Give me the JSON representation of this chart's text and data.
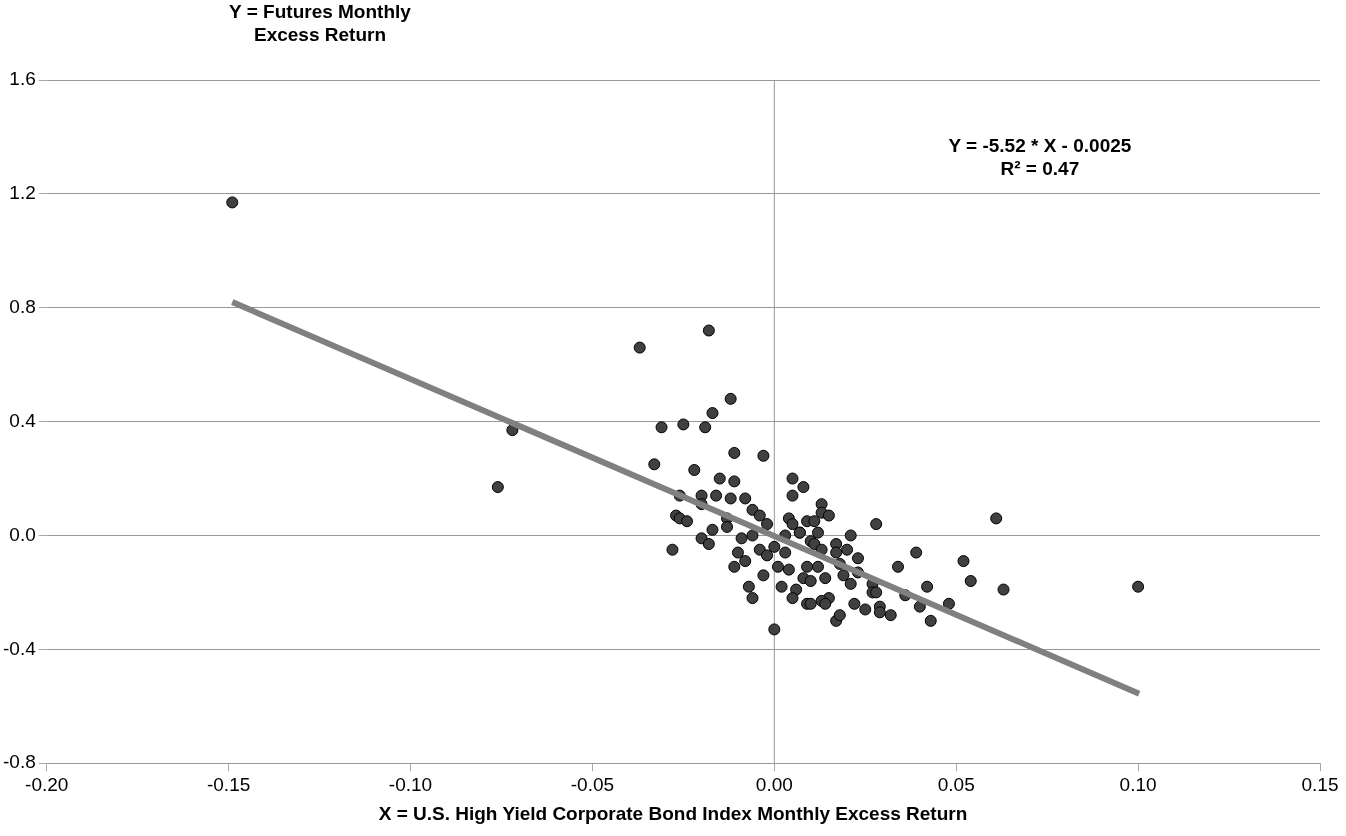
{
  "chart_data": {
    "type": "scatter",
    "xlabel": "X = U.S. High Yield Corporate Bond Index  Monthly Excess Return",
    "ylabel": "Y = Futures Monthly Excess Return",
    "annotations": [
      "Y = -5.52 * X - 0.0025",
      "R² = 0.47"
    ],
    "xlim": [
      -0.2,
      0.15
    ],
    "ylim": [
      -0.8,
      1.6
    ],
    "xticks": [
      {
        "value": -0.2,
        "label": "-0.20"
      },
      {
        "value": -0.15,
        "label": "-0.15"
      },
      {
        "value": -0.1,
        "label": "-0.10"
      },
      {
        "value": -0.05,
        "label": "-0.05"
      },
      {
        "value": 0,
        "label": "0.00"
      },
      {
        "value": 0.05,
        "label": "0.05"
      },
      {
        "value": 0.1,
        "label": "0.10"
      },
      {
        "value": 0.15,
        "label": "0.15"
      }
    ],
    "yticks": [
      {
        "value": -0.8,
        "label": "-0.8"
      },
      {
        "value": -0.4,
        "label": "-0.4"
      },
      {
        "value": 0,
        "label": "0.0"
      },
      {
        "value": 0.4,
        "label": "0.4"
      },
      {
        "value": 0.8,
        "label": "0.8"
      },
      {
        "value": 1.2,
        "label": "1.2"
      },
      {
        "value": 1.6,
        "label": "1.6"
      }
    ],
    "grid": "y",
    "legend": false,
    "ref_lines": [
      {
        "axis": "x",
        "value": 0,
        "color": "#999999"
      }
    ],
    "series": [
      {
        "type": "scatter",
        "marker": "circle",
        "color": "#404040",
        "x": [
          -0.149,
          -0.076,
          -0.072,
          -0.037,
          -0.018,
          -0.012,
          -0.017,
          -0.031,
          -0.025,
          -0.019,
          -0.011,
          -0.003,
          -0.033,
          -0.022,
          -0.015,
          -0.011,
          -0.026,
          -0.02,
          -0.016,
          -0.012,
          -0.008,
          -0.006,
          -0.004,
          -0.002,
          -0.02,
          -0.027,
          -0.026,
          -0.024,
          -0.013,
          -0.013,
          -0.017,
          -0.02,
          -0.018,
          -0.028,
          -0.009,
          -0.006,
          -0.01,
          -0.011,
          -0.008,
          -0.007,
          -0.006,
          0.0,
          -0.004,
          -0.002,
          -0.003,
          0.002,
          0.005,
          0.008,
          0.005,
          0.004,
          0.005,
          0.007,
          0.003,
          0.003,
          0.0,
          0.001,
          0.004,
          0.006,
          0.005,
          0.008,
          0.013,
          0.013,
          0.015,
          0.009,
          0.011,
          0.007,
          0.012,
          0.028,
          0.021,
          0.01,
          0.011,
          0.017,
          0.02,
          0.013,
          0.017,
          0.023,
          0.039,
          0.009,
          0.012,
          0.018,
          0.034,
          0.052,
          0.023,
          0.019,
          0.014,
          0.01,
          0.021,
          0.027,
          0.042,
          0.054,
          0.027,
          0.028,
          0.036,
          0.015,
          0.013,
          0.014,
          0.009,
          0.01,
          0.022,
          0.025,
          0.029,
          0.029,
          0.032,
          0.04,
          0.043,
          0.048,
          0.017,
          0.018,
          0.061,
          0.063,
          0.1
        ],
        "values": [
          1.17,
          0.17,
          0.37,
          0.66,
          0.72,
          0.48,
          0.43,
          0.38,
          0.39,
          0.38,
          0.29,
          0.28,
          0.25,
          0.23,
          0.2,
          0.19,
          0.14,
          0.14,
          0.14,
          0.13,
          0.13,
          0.09,
          0.07,
          0.04,
          0.11,
          0.07,
          0.06,
          0.05,
          0.06,
          0.03,
          0.02,
          -0.01,
          -0.03,
          -0.05,
          -0.01,
          0.0,
          -0.06,
          -0.11,
          -0.09,
          -0.18,
          -0.22,
          -0.33,
          -0.05,
          -0.07,
          -0.14,
          -0.18,
          0.2,
          0.17,
          0.14,
          0.06,
          0.04,
          0.01,
          0.0,
          -0.06,
          -0.04,
          -0.11,
          -0.12,
          -0.19,
          -0.22,
          -0.15,
          0.11,
          0.08,
          0.07,
          0.05,
          0.05,
          0.01,
          0.01,
          0.04,
          0.0,
          -0.02,
          -0.03,
          -0.03,
          -0.05,
          -0.05,
          -0.06,
          -0.08,
          -0.06,
          -0.11,
          -0.11,
          -0.1,
          -0.11,
          -0.09,
          -0.13,
          -0.14,
          -0.15,
          -0.16,
          -0.17,
          -0.17,
          -0.18,
          -0.16,
          -0.2,
          -0.2,
          -0.21,
          -0.22,
          -0.23,
          -0.24,
          -0.24,
          -0.24,
          -0.24,
          -0.26,
          -0.25,
          -0.27,
          -0.28,
          -0.25,
          -0.3,
          -0.24,
          -0.3,
          -0.28,
          0.06,
          -0.19,
          -0.18
        ]
      },
      {
        "type": "line",
        "color": "#808080",
        "x": [
          -0.149,
          0.1003
        ],
        "values": [
          0.82,
          -0.556
        ]
      }
    ]
  }
}
